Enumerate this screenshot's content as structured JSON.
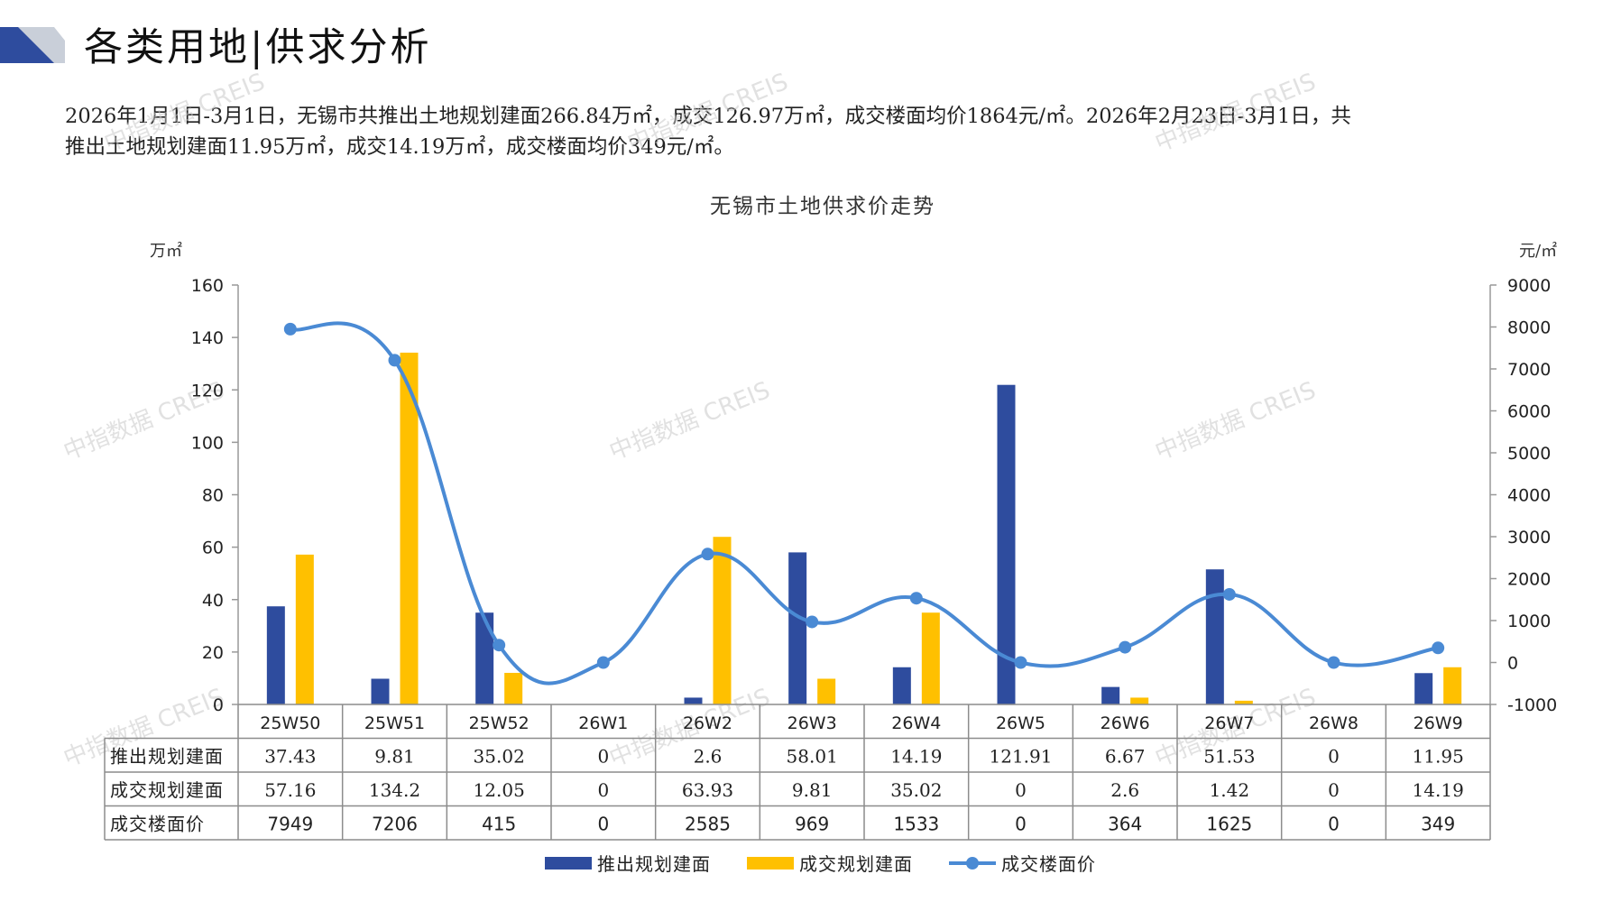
{
  "header": {
    "title": "各类用地|供求分析"
  },
  "summary": {
    "line1": "2026年1月1日-3月1日，无锡市共推出土地规划建面266.84万㎡，成交126.97万㎡，成交楼面均价1864元/㎡。2026年2月23日-3月1日，共",
    "line2": "推出土地规划建面11.95万㎡，成交14.19万㎡，成交楼面均价349元/㎡。"
  },
  "watermark": "中指数据 CREIS",
  "colors": {
    "supply": "#2E4C9E",
    "deal_area": "#FFC000",
    "price": "#4A8AD4",
    "table_border": "#8c8c8c"
  },
  "chart_data": {
    "type": "bar",
    "title": "无锡市土地供求价走势",
    "y_left_unit": "万㎡",
    "y_right_unit": "元/㎡",
    "ylim_left": [
      0,
      160
    ],
    "yticks_left": [
      0,
      20,
      40,
      60,
      80,
      100,
      120,
      140,
      160
    ],
    "ylim_right": [
      -1000,
      9000
    ],
    "yticks_right": [
      -1000,
      0,
      1000,
      2000,
      3000,
      4000,
      5000,
      6000,
      7000,
      8000,
      9000
    ],
    "categories": [
      "25W50",
      "25W51",
      "25W52",
      "26W1",
      "26W2",
      "26W3",
      "26W4",
      "26W5",
      "26W6",
      "26W7",
      "26W8",
      "26W9"
    ],
    "series": [
      {
        "name": "推出规划建面",
        "type": "bar",
        "axis": "left",
        "values": [
          37.43,
          9.81,
          35.02,
          0,
          2.6,
          58.01,
          14.19,
          121.91,
          6.67,
          51.53,
          0,
          11.95
        ],
        "labels": [
          "37.43",
          "9.81",
          "35.02",
          "0",
          "2.6",
          "58.01",
          "14.19",
          "121.91",
          "6.67",
          "51.53",
          "0",
          "11.95"
        ]
      },
      {
        "name": "成交规划建面",
        "type": "bar",
        "axis": "left",
        "values": [
          57.16,
          134.2,
          12.05,
          0,
          63.93,
          9.81,
          35.02,
          0,
          2.6,
          1.42,
          0,
          14.19
        ],
        "labels": [
          "57.16",
          "134.2",
          "12.05",
          "0",
          "63.93",
          "9.81",
          "35.02",
          "0",
          "2.6",
          "1.42",
          "0",
          "14.19"
        ]
      },
      {
        "name": "成交楼面价",
        "type": "line",
        "axis": "right",
        "values": [
          7949,
          7206,
          415,
          0,
          2585,
          969,
          1533,
          0,
          364,
          1625,
          0,
          349
        ],
        "labels": [
          "7949",
          "7206",
          "415",
          "0",
          "2585",
          "969",
          "1533",
          "0",
          "364",
          "1625",
          "0",
          "349"
        ]
      }
    ],
    "legend": "bottom",
    "grid": false,
    "data_table": true
  }
}
